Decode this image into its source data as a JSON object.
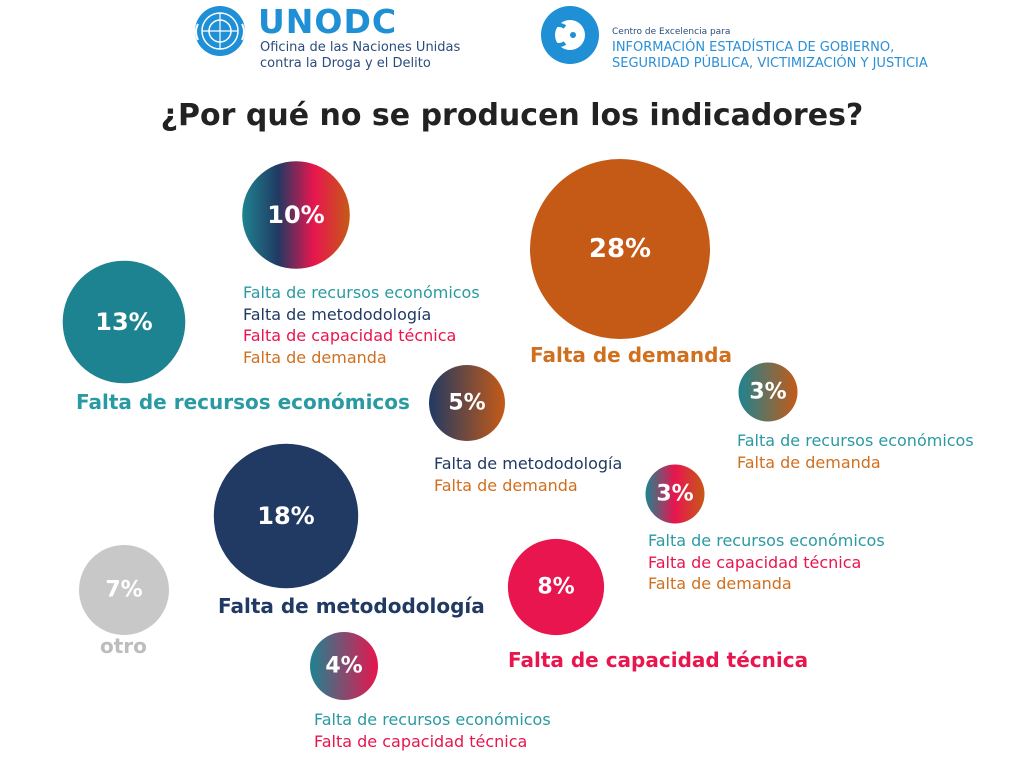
{
  "header": {
    "unodc_title": "UNODC",
    "unodc_line1": "Oficina de las Naciones Unidas",
    "unodc_line2": "contra la Droga y el Delito",
    "cees_line0": "Centro de Excelencia para",
    "cees_line1": "INFORMACIÓN ESTADÍSTICA DE GOBIERNO,",
    "cees_line2": "SEGURIDAD PÚBLICA, VICTIMIZACIÓN Y JUSTICIA"
  },
  "colors": {
    "recursos": "#1e8390",
    "metodologia": "#213a63",
    "capacidad": "#e8154e",
    "demanda": "#c55a17",
    "otro": "#c8c8c8",
    "label_recursos": "#2a9aa2",
    "label_metodologia": "#213a63",
    "label_capacidad": "#e8154e",
    "label_demanda": "#d06f1e",
    "label_otro": "#bdbdbd"
  },
  "chart_data": {
    "type": "bubble",
    "title": "¿Por qué no se producen los indicadores?",
    "bubbles": [
      {
        "value": 10,
        "label": "10%",
        "causes": [
          "Falta de recursos económicos",
          "Falta de metododología",
          "Falta de capacidad técnica",
          "Falta de demanda"
        ],
        "keys": [
          "recursos",
          "metodologia",
          "capacidad",
          "demanda"
        ]
      },
      {
        "value": 28,
        "label": "28%",
        "causes": [
          "Falta de demanda"
        ],
        "keys": [
          "demanda"
        ]
      },
      {
        "value": 13,
        "label": "13%",
        "causes": [
          "Falta de recursos económicos"
        ],
        "keys": [
          "recursos"
        ]
      },
      {
        "value": 5,
        "label": "5%",
        "causes": [
          "Falta de metododología",
          "Falta de demanda"
        ],
        "keys": [
          "metodologia",
          "demanda"
        ]
      },
      {
        "value": 3,
        "label": "3%",
        "causes": [
          "Falta de recursos económicos",
          "Falta de demanda"
        ],
        "keys": [
          "recursos",
          "demanda"
        ]
      },
      {
        "value": 18,
        "label": "18%",
        "causes": [
          "Falta de metododología"
        ],
        "keys": [
          "metodologia"
        ]
      },
      {
        "value": 3,
        "label": "3%",
        "causes": [
          "Falta de recursos económicos",
          "Falta de capacidad técnica",
          "Falta de demanda"
        ],
        "keys": [
          "recursos",
          "capacidad",
          "demanda"
        ]
      },
      {
        "value": 7,
        "label": "7%",
        "causes": [
          "otro"
        ],
        "keys": [
          "otro"
        ]
      },
      {
        "value": 8,
        "label": "8%",
        "causes": [
          "Falta de capacidad técnica"
        ],
        "keys": [
          "capacidad"
        ]
      },
      {
        "value": 4,
        "label": "4%",
        "causes": [
          "Falta de recursos económicos",
          "Falta de capacidad técnica"
        ],
        "keys": [
          "recursos",
          "capacidad"
        ]
      }
    ]
  }
}
